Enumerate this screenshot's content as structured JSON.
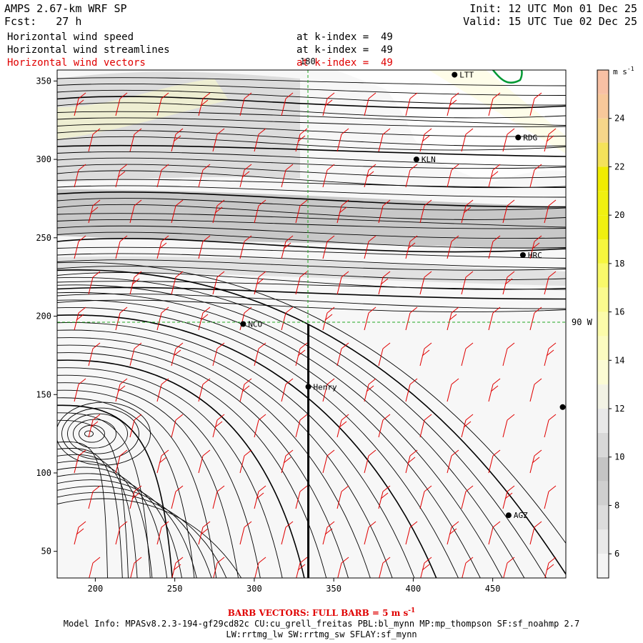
{
  "header": {
    "model": "AMPS 2.67-km WRF SP",
    "forecast": "Fcst:   27 h",
    "init": "Init: 12 UTC Mon 01 Dec 25",
    "valid": "Valid: 15 UTC Tue 02 Dec 25"
  },
  "fields": [
    {
      "name": "Horizontal wind speed",
      "level": "at k-index =  49",
      "color": "#000000"
    },
    {
      "name": "Horizontal wind streamlines",
      "level": "at k-index =  49",
      "color": "#000000"
    },
    {
      "name": "Horizontal wind vectors",
      "level": "at k-index =  49",
      "color": "#e00000"
    }
  ],
  "map": {
    "x_ticks": [
      "200",
      "250",
      "300",
      "350",
      "400",
      "450"
    ],
    "y_ticks": [
      "50",
      "100",
      "150",
      "200",
      "250",
      "300",
      "350"
    ],
    "x_range": [
      176,
      496
    ],
    "y_range": [
      33,
      357
    ],
    "longitude_labels": {
      "meridian_180": "180",
      "meridian_90w": "90 W"
    },
    "stations": [
      {
        "label": "LTT",
        "x": 426,
        "y": 354
      },
      {
        "label": "RDG",
        "x": 466,
        "y": 314
      },
      {
        "label": "KLN",
        "x": 402,
        "y": 300
      },
      {
        "label": "HRC",
        "x": 469,
        "y": 239
      },
      {
        "label": "NCO",
        "x": 293,
        "y": 195
      },
      {
        "label": "Henry",
        "x": 334,
        "y": 155
      },
      {
        "label": "AGZ",
        "x": 460,
        "y": 73
      },
      {
        "label": "",
        "x": 494,
        "y": 142
      }
    ],
    "cross_section_x": 334,
    "cross_section_y_range": [
      33,
      195
    ],
    "vortex_center": {
      "x": 196,
      "y": 125
    }
  },
  "colorbar": {
    "units": "m s",
    "units_exp": "-1",
    "levels": [
      5,
      6,
      7,
      8,
      9,
      10,
      11,
      12,
      13,
      14,
      15,
      16,
      17,
      18,
      19,
      20,
      21,
      22,
      23,
      24,
      25,
      26
    ],
    "tick_labels": [
      "6",
      "8",
      "10",
      "12",
      "14",
      "16",
      "18",
      "20",
      "22",
      "24"
    ],
    "colors": [
      "#f4f4f4",
      "#e9e9e9",
      "#dcdcdc",
      "#cfcfcf",
      "#c4c4c4",
      "#d8d8d8",
      "#e8e8e8",
      "#f2f2e4",
      "#fbfbd4",
      "#fbfbc0",
      "#fbfbaa",
      "#fafa8e",
      "#f9f96a",
      "#f6f63e",
      "#f0f010",
      "#f0f010",
      "#f0ec00",
      "#f4e25a",
      "#f6d68a",
      "#f8c89a",
      "#f8c0a4"
    ]
  },
  "barb_note": "BARB VECTORS:  FULL BARB = 5 m s",
  "barb_note_exp": "-1",
  "model_info": [
    "Model Info: MPASv8.2.3-194-gf29cd82c CU:cu_grell_freitas PBL:bl_mynn MP:mp_thompson SF:sf_noahmp 2.7",
    "LW:rrtmg_lw SW:rrtmg_sw SFLAY:sf_mynn"
  ]
}
